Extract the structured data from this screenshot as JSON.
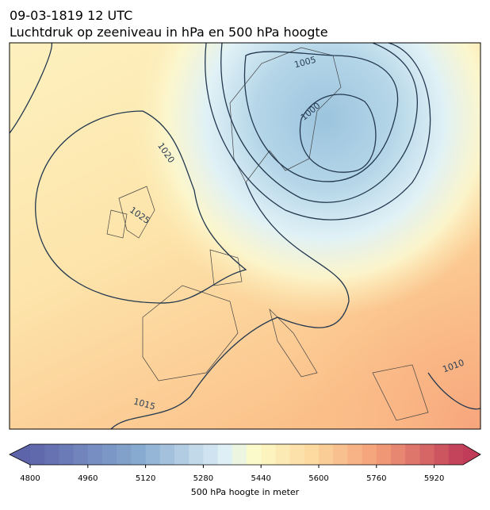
{
  "title": "09-03-1819 12 UTC",
  "subtitle": "Luchtdruk op zeeniveau in hPa en 500 hPa hoogte",
  "contour_labels": [
    1005,
    1000,
    1020,
    1025,
    1015,
    1010
  ],
  "colorbar": {
    "label": "500 hPa hoogte in meter",
    "lim": [
      4800,
      6000
    ],
    "ticks": [
      4800,
      4960,
      5120,
      5280,
      5440,
      5600,
      5760,
      5920
    ]
  }
}
